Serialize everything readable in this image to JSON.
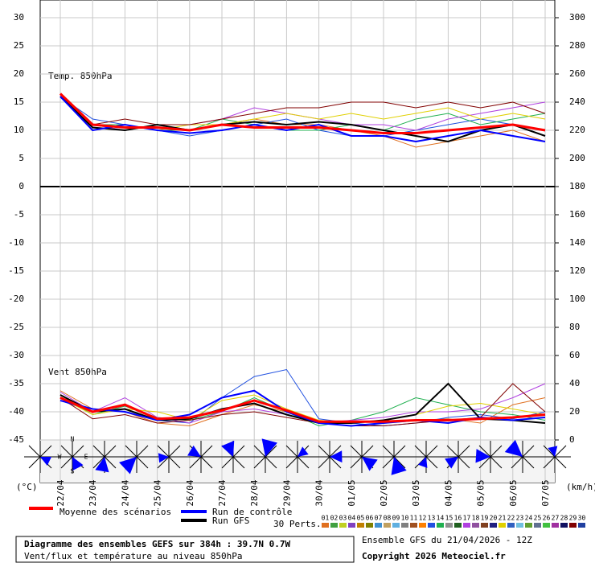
{
  "chart_data": {
    "type": "line",
    "panel_labels": [
      "Temp. 850hPa",
      "Vent 850hPa"
    ],
    "y_unit": "(°C)",
    "y2_unit": "(km/h)",
    "categories": [
      "22/04",
      "23/04",
      "24/04",
      "25/04",
      "26/04",
      "27/04",
      "28/04",
      "29/04",
      "30/04",
      "01/05",
      "02/05",
      "03/05",
      "04/05",
      "05/05",
      "06/05",
      "07/05"
    ],
    "ylim": [
      -45,
      30
    ],
    "yticks": [
      30,
      25,
      20,
      15,
      10,
      5,
      0,
      -5,
      -10,
      -15,
      -20,
      -25,
      -30,
      -35,
      -40,
      -45
    ],
    "y2lim": [
      0,
      300
    ],
    "y2ticks": [
      300,
      280,
      260,
      240,
      220,
      200,
      180,
      160,
      140,
      120,
      100,
      80,
      60,
      40,
      20,
      0
    ],
    "grid": true,
    "series": [
      {
        "name": "Moyenne des scénarios",
        "color": "#ff0000",
        "temp": [
          16.5,
          11,
          10.5,
          10.5,
          10,
          11,
          10.5,
          10.5,
          10.5,
          10,
          9.5,
          9.5,
          10,
          10.5,
          11,
          10
        ],
        "wind": [
          30,
          20,
          25,
          15,
          16,
          21,
          28,
          21,
          13,
          13,
          13,
          14,
          14,
          15,
          16,
          18
        ]
      },
      {
        "name": "Run de contrôle",
        "color": "#0000ff",
        "temp": [
          16,
          10,
          11,
          10,
          9.5,
          10,
          11,
          10,
          11,
          9,
          9,
          8,
          9,
          10,
          9,
          8
        ],
        "wind": [
          28,
          22,
          20,
          14,
          18,
          30,
          35,
          20,
          12,
          10,
          12,
          14,
          12,
          16,
          14,
          16
        ]
      },
      {
        "name": "Run GFS",
        "color": "#000000",
        "temp": [
          16,
          10.5,
          10,
          11,
          10,
          11,
          11.5,
          11,
          11.5,
          11,
          10,
          9,
          8,
          10,
          11,
          9
        ],
        "wind": [
          32,
          20,
          22,
          14,
          15,
          22,
          26,
          18,
          12,
          12,
          14,
          18,
          40,
          15,
          14,
          12
        ]
      }
    ],
    "perturbations": {
      "label": "30 Perts.",
      "members": [
        {
          "name": "01",
          "color": "#e07020",
          "temp": [
            16,
            11,
            10,
            11,
            10,
            11,
            12,
            11,
            11,
            10,
            9,
            7,
            8,
            9,
            10,
            8
          ],
          "wind": [
            35,
            22,
            20,
            12,
            10,
            18,
            25,
            20,
            12,
            10,
            12,
            14,
            15,
            12,
            25,
            30
          ]
        },
        {
          "name": "02",
          "color": "#40a040"
        },
        {
          "name": "03",
          "color": "#c0d020"
        },
        {
          "name": "04",
          "color": "#8040c0"
        },
        {
          "name": "05",
          "color": "#c08000"
        },
        {
          "name": "06",
          "color": "#808000"
        },
        {
          "name": "07",
          "color": "#4090d0"
        },
        {
          "name": "08",
          "color": "#c0a060"
        },
        {
          "name": "09",
          "color": "#60b0e0"
        },
        {
          "name": "10",
          "color": "#808080"
        },
        {
          "name": "11",
          "color": "#a05020"
        },
        {
          "name": "12",
          "color": "#ff8000"
        },
        {
          "name": "13",
          "color": "#2050e0",
          "temp": [
            16,
            12,
            11,
            10,
            9,
            10,
            11,
            12,
            10,
            9,
            9,
            10,
            11,
            12,
            11,
            9
          ],
          "wind": [
            28,
            20,
            22,
            14,
            12,
            30,
            45,
            50,
            15,
            12,
            10,
            12,
            16,
            18,
            15,
            20
          ]
        },
        {
          "name": "14",
          "color": "#20b050",
          "temp": [
            16,
            11,
            11,
            10,
            10,
            12,
            11,
            10,
            10,
            11,
            10,
            12,
            13,
            11,
            12,
            13
          ],
          "wind": [
            32,
            18,
            24,
            16,
            14,
            20,
            30,
            20,
            10,
            14,
            20,
            30,
            25,
            20,
            18,
            14
          ]
        },
        {
          "name": "15",
          "color": "#909090"
        },
        {
          "name": "16",
          "color": "#206020"
        },
        {
          "name": "17",
          "color": "#b040e0",
          "temp": [
            16,
            11,
            10,
            11,
            11,
            12,
            14,
            13,
            12,
            11,
            11,
            10,
            12,
            13,
            14,
            15
          ],
          "wind": [
            34,
            20,
            30,
            16,
            12,
            20,
            22,
            18,
            12,
            14,
            16,
            20,
            20,
            22,
            30,
            40
          ]
        },
        {
          "name": "18",
          "color": "#9050a0"
        },
        {
          "name": "19",
          "color": "#804020"
        },
        {
          "name": "20",
          "color": "#202080"
        },
        {
          "name": "21",
          "color": "#e0d000",
          "temp": [
            16,
            10,
            11,
            10,
            11,
            11,
            12,
            13,
            12,
            13,
            12,
            13,
            14,
            12,
            13,
            12
          ],
          "wind": [
            30,
            18,
            22,
            20,
            14,
            28,
            32,
            22,
            14,
            12,
            14,
            18,
            24,
            26,
            22,
            18
          ]
        },
        {
          "name": "22",
          "color": "#3060c0"
        },
        {
          "name": "23",
          "color": "#70c0e0"
        },
        {
          "name": "24",
          "color": "#60a030"
        },
        {
          "name": "25",
          "color": "#607090"
        },
        {
          "name": "26",
          "color": "#40c040"
        },
        {
          "name": "27",
          "color": "#a030a0"
        },
        {
          "name": "28",
          "color": "#101060"
        },
        {
          "name": "29",
          "color": "#800000",
          "temp": [
            16,
            11,
            12,
            11,
            11,
            12,
            13,
            14,
            14,
            15,
            15,
            14,
            15,
            14,
            15,
            13
          ],
          "wind": [
            30,
            15,
            18,
            12,
            14,
            18,
            20,
            16,
            12,
            10,
            10,
            12,
            14,
            16,
            40,
            20
          ]
        },
        {
          "name": "30",
          "color": "#2040a0"
        }
      ]
    },
    "compass_labels": [
      "N",
      "S",
      "W",
      "E"
    ],
    "info_box": {
      "title": "Diagramme des ensembles GEFS sur 384h : 39.7N 0.7W",
      "subtitle": "Vent/flux et température au niveau 850hPa"
    },
    "run_info": "Ensemble GFS du 21/04/2026 - 12Z",
    "copyright": "Copyright 2026 Meteociel.fr"
  }
}
